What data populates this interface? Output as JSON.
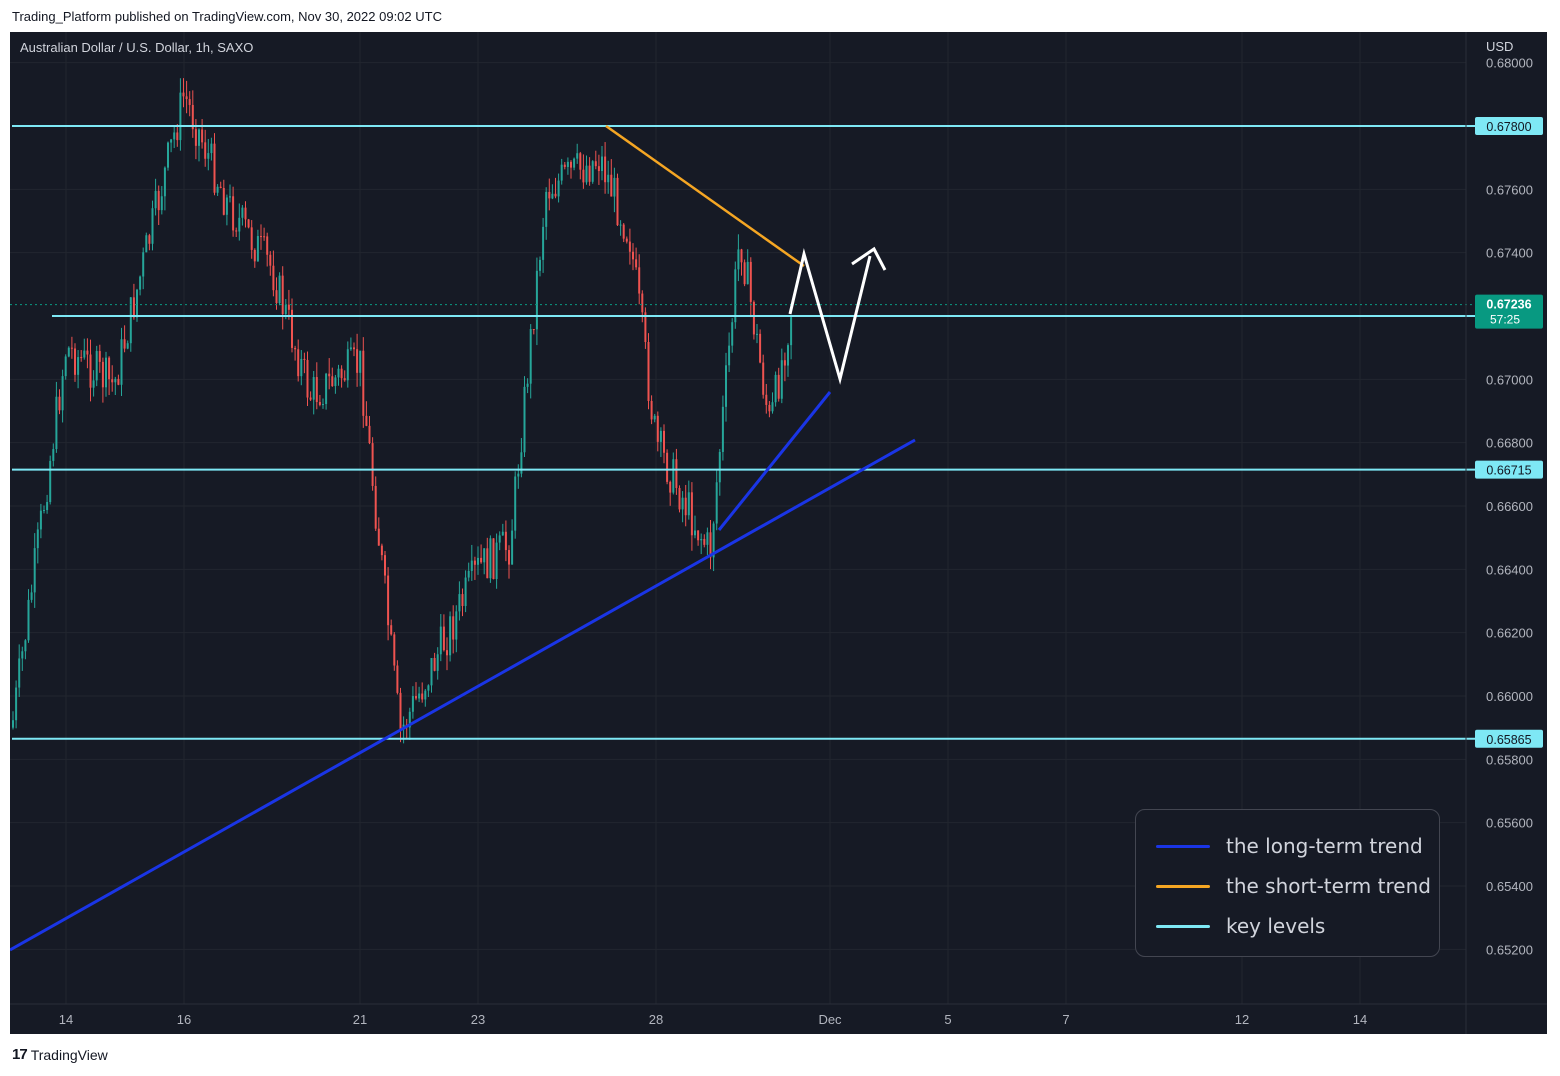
{
  "header": {
    "published_text": "Trading_Platform published on TradingView.com, Nov 30, 2022 09:02 UTC"
  },
  "symbol": {
    "title": "Australian Dollar / U.S. Dollar, 1h, SAXO"
  },
  "price_axis": {
    "currency": "USD",
    "current_price": "0.67236",
    "countdown": "57:25"
  },
  "footer": {
    "brand": "TradingView",
    "logo_mark": "17"
  },
  "legend": {
    "items": [
      {
        "label": "the long-term trend",
        "color": "#1a35e6"
      },
      {
        "label": "the short-term trend",
        "color": "#f5a623"
      },
      {
        "label": "key levels",
        "color": "#7ee8f5"
      }
    ]
  },
  "colors": {
    "background": "#161a25",
    "grid": "#22262f",
    "up_candle": "#26a69a",
    "down_candle": "#ef5350",
    "key_level": "#7ee8f5",
    "long_term_trend": "#1a35e6",
    "short_term_trend": "#f5a623",
    "projection_arrow": "#ffffff",
    "current_price_tag": "#089981"
  },
  "chart_data": {
    "type": "candlestick",
    "title": "Australian Dollar / U.S. Dollar, 1h, SAXO",
    "y_unit": "USD",
    "ylim": [
      0.6505,
      0.68
    ],
    "y_ticks": [
      "0.68000",
      "0.67600",
      "0.67400",
      "0.67000",
      "0.66800",
      "0.66600",
      "0.66400",
      "0.66200",
      "0.66000",
      "0.65800",
      "0.65600",
      "0.65400",
      "0.65200"
    ],
    "x_ticks": [
      "14",
      "16",
      "21",
      "23",
      "28",
      "Dec",
      "5",
      "7",
      "12",
      "14"
    ],
    "grid": true,
    "key_levels": [
      {
        "value": 0.678,
        "label": "0.67800"
      },
      {
        "value": 0.672,
        "label": "0.67200"
      },
      {
        "value": 0.66715,
        "label": "0.66715"
      },
      {
        "value": 0.65865,
        "label": "0.65865"
      }
    ],
    "current_price": 0.67236,
    "price_path": [
      {
        "date": "Nov 13",
        "price": 0.659
      },
      {
        "date": "Nov 14",
        "price": 0.671
      },
      {
        "date": "Nov 15",
        "price": 0.6698
      },
      {
        "date": "Nov 16",
        "price": 0.679
      },
      {
        "date": "Nov 17",
        "price": 0.6755
      },
      {
        "date": "Nov 18",
        "price": 0.6735
      },
      {
        "date": "Nov 20",
        "price": 0.6695
      },
      {
        "date": "Nov 21",
        "price": 0.6705
      },
      {
        "date": "Nov 22",
        "price": 0.6588
      },
      {
        "date": "Nov 23",
        "price": 0.664
      },
      {
        "date": "Nov 24",
        "price": 0.6648
      },
      {
        "date": "Nov 25",
        "price": 0.676
      },
      {
        "date": "Nov 26",
        "price": 0.677
      },
      {
        "date": "Nov 27",
        "price": 0.6745
      },
      {
        "date": "Nov 28",
        "price": 0.668
      },
      {
        "date": "Nov 29",
        "price": 0.6645
      },
      {
        "date": "Nov 29 12:00",
        "price": 0.6746
      },
      {
        "date": "Nov 30 03:00",
        "price": 0.6685
      },
      {
        "date": "Nov 30 09:00",
        "price": 0.67236
      }
    ]
  }
}
